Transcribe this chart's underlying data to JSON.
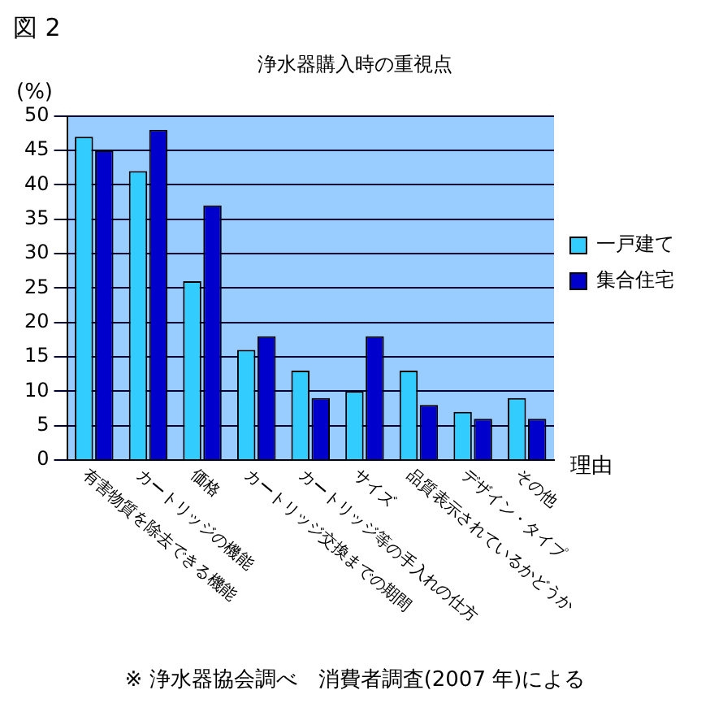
{
  "chart_data": {
    "type": "bar",
    "title": "浄水器購入時の重視点",
    "ylabel": "(%)",
    "xlabel": "理由",
    "categories": [
      "有害物質を除去できる機能",
      "カートリッジの機能",
      "価格",
      "カートリッジ交換までの期間",
      "カートリッジ等の手入れの仕方",
      "サイズ",
      "品質表示されているかどうか",
      "デザイン・タイプ",
      "その他"
    ],
    "series": [
      {
        "name": "一戸建て",
        "color": "#33ccff",
        "values": [
          47,
          42,
          26,
          16,
          13,
          10,
          13,
          7,
          9
        ]
      },
      {
        "name": "集合住宅",
        "color": "#0000cc",
        "values": [
          45,
          48,
          37,
          18,
          9,
          18,
          8,
          6,
          6
        ]
      }
    ],
    "ylim": [
      0,
      50
    ],
    "yticks": [
      0,
      5,
      10,
      15,
      20,
      25,
      30,
      35,
      40,
      45,
      50
    ],
    "grid": "y",
    "legend": "right",
    "annotations": [
      "図 2",
      "※ 浄水器協会調べ　消費者調査(2007 年)による"
    ]
  }
}
